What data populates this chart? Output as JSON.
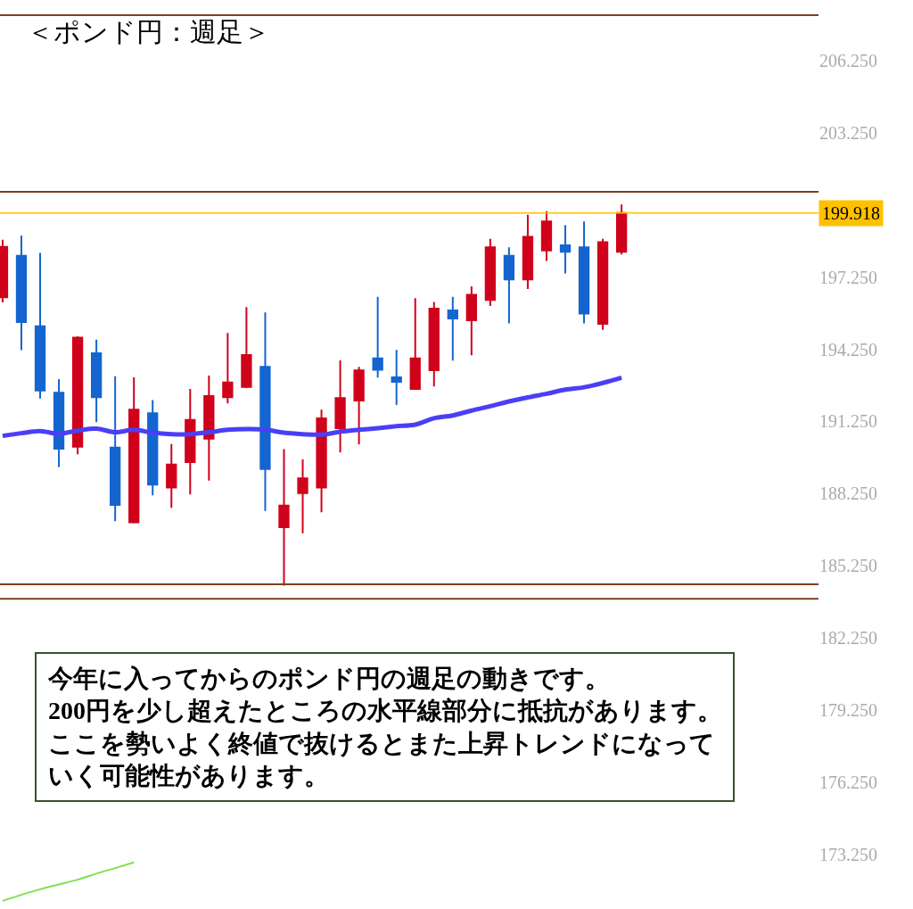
{
  "chart_data": {
    "type": "candlestick",
    "title": "＜ポンド円：週足＞",
    "categories": [
      null,
      null,
      null,
      null,
      null,
      null,
      null,
      null,
      null,
      null,
      null,
      null,
      null,
      null,
      null,
      null,
      null,
      null,
      null,
      null,
      null,
      null,
      null,
      null,
      null,
      null,
      null,
      null,
      null,
      null,
      null,
      null,
      null,
      null
    ],
    "ohlc": [
      [
        196.41,
        198.8,
        196.2,
        198.51
      ],
      [
        198.14,
        198.98,
        194.21,
        195.38
      ],
      [
        195.21,
        198.26,
        192.2,
        192.54
      ],
      [
        192.44,
        193.01,
        189.36,
        190.12
      ],
      [
        190.2,
        194.79,
        189.88,
        194.73
      ],
      [
        194.08,
        194.65,
        191.22,
        192.26
      ],
      [
        190.16,
        193.13,
        187.1,
        187.78
      ],
      [
        187.06,
        193.08,
        187.01,
        191.74
      ],
      [
        191.59,
        192.14,
        188.18,
        188.62
      ],
      [
        188.5,
        190.31,
        187.66,
        189.46
      ],
      [
        189.56,
        192.6,
        188.22,
        191.31
      ],
      [
        190.53,
        193.16,
        188.79,
        192.3
      ],
      [
        192.26,
        194.93,
        192.0,
        192.87
      ],
      [
        192.68,
        196.0,
        192.64,
        194.01
      ],
      [
        193.52,
        195.78,
        187.53,
        189.27
      ],
      [
        186.85,
        190.1,
        184.42,
        187.75
      ],
      [
        188.27,
        189.67,
        186.6,
        188.88
      ],
      [
        188.5,
        191.74,
        187.47,
        191.38
      ],
      [
        190.97,
        193.79,
        189.96,
        192.22
      ],
      [
        192.12,
        193.52,
        190.29,
        193.37
      ],
      [
        193.87,
        196.43,
        193.07,
        193.4
      ],
      [
        193.08,
        194.22,
        191.93,
        192.9
      ],
      [
        192.6,
        196.37,
        192.6,
        193.87
      ],
      [
        193.38,
        196.22,
        192.7,
        195.94
      ],
      [
        195.86,
        196.43,
        193.78,
        195.53
      ],
      [
        195.46,
        196.87,
        194.0,
        196.51
      ],
      [
        196.3,
        198.84,
        196.05,
        198.49
      ],
      [
        198.14,
        198.49,
        195.33,
        197.15
      ],
      [
        197.15,
        199.84,
        196.75,
        198.92
      ],
      [
        198.36,
        199.99,
        197.92,
        199.56
      ],
      [
        198.57,
        199.41,
        197.4,
        198.3
      ],
      [
        198.49,
        199.56,
        195.33,
        195.73
      ],
      [
        195.31,
        198.84,
        195.06,
        198.7
      ],
      [
        198.3,
        200.27,
        198.19,
        199.918
      ]
    ],
    "colors": [
      "#d0021b",
      "#1565d0",
      "#1565d0",
      "#1565d0",
      "#d0021b",
      "#1565d0",
      "#1565d0",
      "#d0021b",
      "#1565d0",
      "#d0021b",
      "#d0021b",
      "#d0021b",
      "#d0021b",
      "#d0021b",
      "#1565d0",
      "#d0021b",
      "#d0021b",
      "#d0021b",
      "#d0021b",
      "#d0021b",
      "#1565d0",
      "#1565d0",
      "#d0021b",
      "#d0021b",
      "#1565d0",
      "#d0021b",
      "#d0021b",
      "#1565d0",
      "#d0021b",
      "#d0021b",
      "#1565d0",
      "#1565d0",
      "#d0021b",
      "#d0021b"
    ],
    "series": [
      {
        "type": "line",
        "color": "#4a3ff5",
        "values": [
          190.65,
          190.76,
          190.85,
          190.74,
          190.87,
          190.95,
          190.8,
          190.9,
          190.78,
          190.72,
          190.72,
          190.8,
          190.9,
          190.93,
          190.91,
          190.78,
          190.72,
          190.7,
          190.82,
          190.9,
          190.97,
          191.05,
          191.12,
          191.38,
          191.5,
          191.7,
          191.88,
          192.08,
          192.25,
          192.4,
          192.57,
          192.67,
          192.85,
          193.07
        ]
      },
      {
        "type": "line",
        "color": "#80e050",
        "values": [
          171.32,
          171.57,
          171.8,
          172.0,
          172.2,
          172.45,
          172.68,
          172.92,
          null,
          null,
          null,
          null,
          null,
          null,
          null,
          null,
          null,
          null,
          null,
          null,
          null,
          null,
          null,
          null,
          null,
          null,
          null,
          null,
          null,
          null,
          null,
          null,
          null,
          null
        ]
      }
    ],
    "ref_lines": [
      {
        "axis": "y",
        "value": 208.14,
        "color": "#7b3f1e"
      },
      {
        "axis": "y",
        "value": 200.8,
        "color": "#7b3f1e"
      },
      {
        "axis": "y",
        "value": 199.918,
        "label": "199.918",
        "color": "#ffc000"
      },
      {
        "axis": "y",
        "value": 184.48,
        "color": "#7b3f1e"
      },
      {
        "axis": "y",
        "value": 183.88,
        "color": "#7b3f1e"
      }
    ],
    "annotations": [
      "今年に入ってからのポンド円の週足の動きです。200円を少し超えたところの水平線部分に抵抗があります。ここを勢いよく終値で抜けるとまた上昇トレンドになっていく可能性があります。"
    ],
    "ylim": [
      170.98,
      208.77
    ],
    "yticks": [
      {
        "value": 206.25,
        "label": "206.250"
      },
      {
        "value": 203.25,
        "label": "203.250"
      },
      {
        "value": 197.25,
        "label": "197.250"
      },
      {
        "value": 194.25,
        "label": "194.250"
      },
      {
        "value": 191.25,
        "label": "191.250"
      },
      {
        "value": 188.25,
        "label": "188.250"
      },
      {
        "value": 185.25,
        "label": "185.250"
      },
      {
        "value": 182.25,
        "label": "182.250"
      },
      {
        "value": 179.25,
        "label": "179.250"
      },
      {
        "value": 176.25,
        "label": "176.250"
      },
      {
        "value": 173.25,
        "label": "173.250"
      }
    ],
    "tick_labels": "y"
  }
}
